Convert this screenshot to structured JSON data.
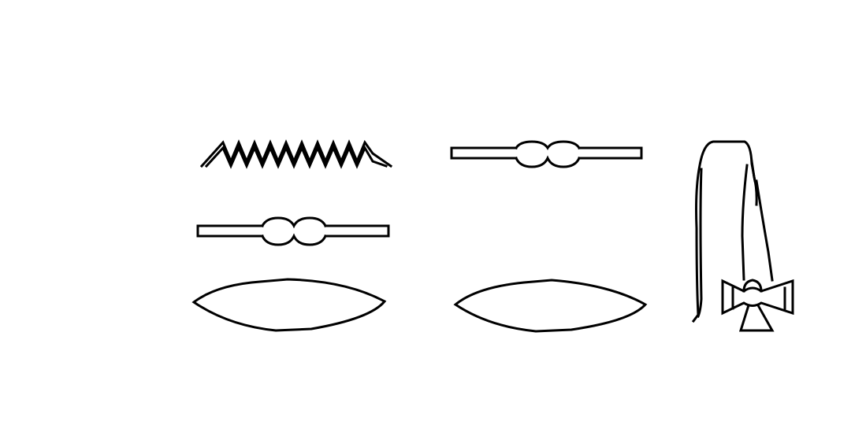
{
  "colors": {
    "background": "#ffffff",
    "ink": "#000000"
  },
  "glyphs": [
    {
      "icon": "water-zigzag-icon"
    },
    {
      "icon": "road-bar-icon"
    },
    {
      "icon": "road-bar-icon"
    },
    {
      "icon": "mouth-oval-icon"
    },
    {
      "icon": "mouth-oval-icon"
    },
    {
      "icon": "seated-figure-with-flail-icon"
    }
  ]
}
